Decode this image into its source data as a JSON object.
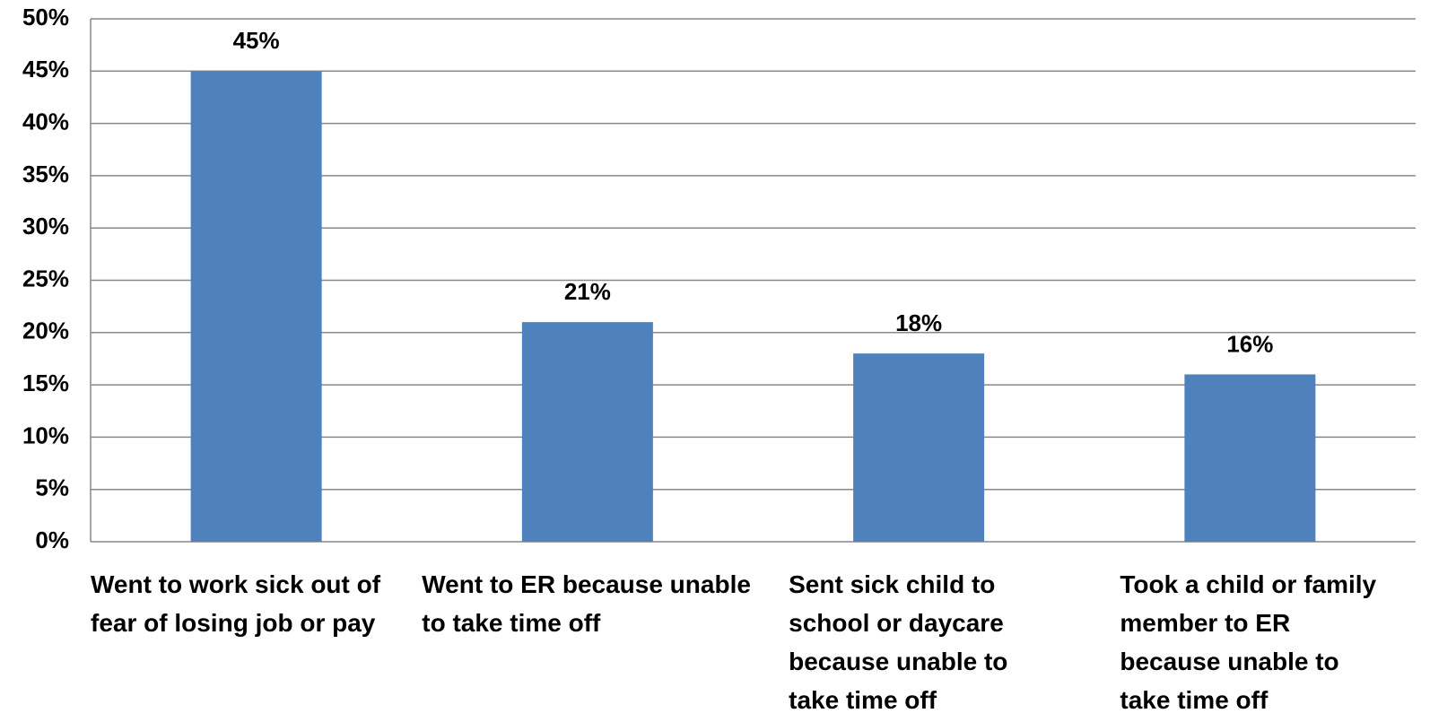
{
  "chart_data": {
    "type": "bar",
    "categories": [
      "Went to work sick out of fear of losing job or pay",
      "Went to ER because unable to take time off",
      "Sent sick child to school or daycare because unable to take time off",
      "Took a child or family member to ER because unable to take time off"
    ],
    "values": [
      45,
      21,
      18,
      16
    ],
    "value_labels": [
      "45%",
      "21%",
      "18%",
      "16%"
    ],
    "color": "#4f81bd",
    "ylim": [
      0,
      50
    ],
    "yticks": [
      {
        "value": 0,
        "label": "0%"
      },
      {
        "value": 5,
        "label": "5%"
      },
      {
        "value": 10,
        "label": "10%"
      },
      {
        "value": 15,
        "label": "15%"
      },
      {
        "value": 20,
        "label": "20%"
      },
      {
        "value": 25,
        "label": "25%"
      },
      {
        "value": 30,
        "label": "30%"
      },
      {
        "value": 35,
        "label": "35%"
      },
      {
        "value": 40,
        "label": "40%"
      },
      {
        "value": 45,
        "label": "45%"
      },
      {
        "value": 50,
        "label": "50%"
      }
    ],
    "grid": true
  }
}
